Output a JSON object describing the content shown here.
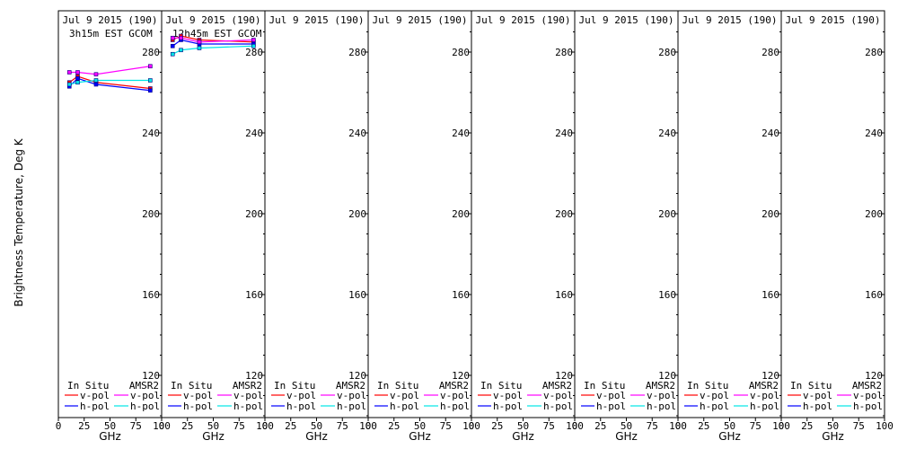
{
  "figure": {
    "ylabel": "Brightness Temperature, Deg K",
    "legend": {
      "left_title": "In Situ",
      "right_title": "AMSR2",
      "vpol": "v-pol",
      "hpol": "h-pol"
    }
  },
  "colors": {
    "insitu_v": "#ff0000",
    "insitu_h": "#0000ff",
    "amsr2_v": "#ff00ff",
    "amsr2_h": "#00e5e5",
    "marker_border": "#000080"
  },
  "chart_data": [
    {
      "type": "line",
      "title": "Jul 9 2015 (190)",
      "subtitle": "3h15m EST GCOM",
      "xlabel": "GHz",
      "ylabel": "Brightness Temperature, Deg K",
      "xlim": [
        0,
        100
      ],
      "ylim": [
        100,
        290
      ],
      "xticks": [
        0,
        25,
        50,
        75,
        100
      ],
      "yticks": [
        120,
        160,
        200,
        240,
        280
      ],
      "legend": "bottom",
      "x": [
        10.65,
        18.7,
        36.5,
        89
      ],
      "series": [
        {
          "name": "v-pol",
          "group": "In Situ",
          "values": [
            265,
            268,
            265,
            262
          ]
        },
        {
          "name": "h-pol",
          "group": "In Situ",
          "values": [
            263,
            267,
            264,
            261
          ]
        },
        {
          "name": "v-pol",
          "group": "AMSR2",
          "values": [
            270,
            270,
            269,
            273
          ]
        },
        {
          "name": "h-pol",
          "group": "AMSR2",
          "values": [
            264,
            265,
            266,
            266
          ]
        }
      ]
    },
    {
      "type": "line",
      "title": "Jul 9 2015 (190)",
      "subtitle": "12h45m EST GCOM",
      "xlabel": "GHz",
      "ylabel": "",
      "xlim": [
        0,
        100
      ],
      "ylim": [
        100,
        290
      ],
      "xticks": [
        0,
        25,
        50,
        75,
        100
      ],
      "yticks": [
        120,
        160,
        200,
        240,
        280
      ],
      "legend": "bottom",
      "x": [
        10.65,
        18.7,
        36.5,
        89
      ],
      "series": [
        {
          "name": "v-pol",
          "group": "In Situ",
          "values": [
            286,
            288,
            286,
            285
          ]
        },
        {
          "name": "h-pol",
          "group": "In Situ",
          "values": [
            283,
            286,
            284,
            284
          ]
        },
        {
          "name": "v-pol",
          "group": "AMSR2",
          "values": [
            287,
            287,
            285,
            286
          ]
        },
        {
          "name": "h-pol",
          "group": "AMSR2",
          "values": [
            279,
            281,
            282,
            283
          ]
        }
      ]
    },
    {
      "type": "line",
      "title": "Jul 9 2015 (190)",
      "subtitle": "",
      "xlabel": "GHz",
      "ylabel": "",
      "xlim": [
        0,
        100
      ],
      "ylim": [
        100,
        290
      ],
      "xticks": [
        0,
        25,
        50,
        75,
        100
      ],
      "yticks": [
        120,
        160,
        200,
        240,
        280
      ],
      "legend": "bottom",
      "x": [],
      "series": []
    },
    {
      "type": "line",
      "title": "Jul 9 2015 (190)",
      "subtitle": "",
      "xlabel": "GHz",
      "ylabel": "",
      "xlim": [
        0,
        100
      ],
      "ylim": [
        100,
        290
      ],
      "xticks": [
        0,
        25,
        50,
        75,
        100
      ],
      "yticks": [
        120,
        160,
        200,
        240,
        280
      ],
      "legend": "bottom",
      "x": [],
      "series": []
    },
    {
      "type": "line",
      "title": "Jul 9 2015 (190)",
      "subtitle": "",
      "xlabel": "GHz",
      "ylabel": "",
      "xlim": [
        0,
        100
      ],
      "ylim": [
        100,
        290
      ],
      "xticks": [
        0,
        25,
        50,
        75,
        100
      ],
      "yticks": [
        120,
        160,
        200,
        240,
        280
      ],
      "legend": "bottom",
      "x": [],
      "series": []
    },
    {
      "type": "line",
      "title": "Jul 9 2015 (190)",
      "subtitle": "",
      "xlabel": "GHz",
      "ylabel": "",
      "xlim": [
        0,
        100
      ],
      "ylim": [
        100,
        290
      ],
      "xticks": [
        0,
        25,
        50,
        75,
        100
      ],
      "yticks": [
        120,
        160,
        200,
        240,
        280
      ],
      "legend": "bottom",
      "x": [],
      "series": []
    },
    {
      "type": "line",
      "title": "Jul 9 2015 (190)",
      "subtitle": "",
      "xlabel": "GHz",
      "ylabel": "",
      "xlim": [
        0,
        100
      ],
      "ylim": [
        100,
        290
      ],
      "xticks": [
        0,
        25,
        50,
        75,
        100
      ],
      "yticks": [
        120,
        160,
        200,
        240,
        280
      ],
      "legend": "bottom",
      "x": [],
      "series": []
    },
    {
      "type": "line",
      "title": "Jul 9 2015 (190)",
      "subtitle": "",
      "xlabel": "GHz",
      "ylabel": "",
      "xlim": [
        0,
        100
      ],
      "ylim": [
        100,
        290
      ],
      "xticks": [
        0,
        25,
        50,
        75,
        100
      ],
      "yticks": [
        120,
        160,
        200,
        240,
        280
      ],
      "legend": "bottom",
      "x": [],
      "series": []
    }
  ]
}
